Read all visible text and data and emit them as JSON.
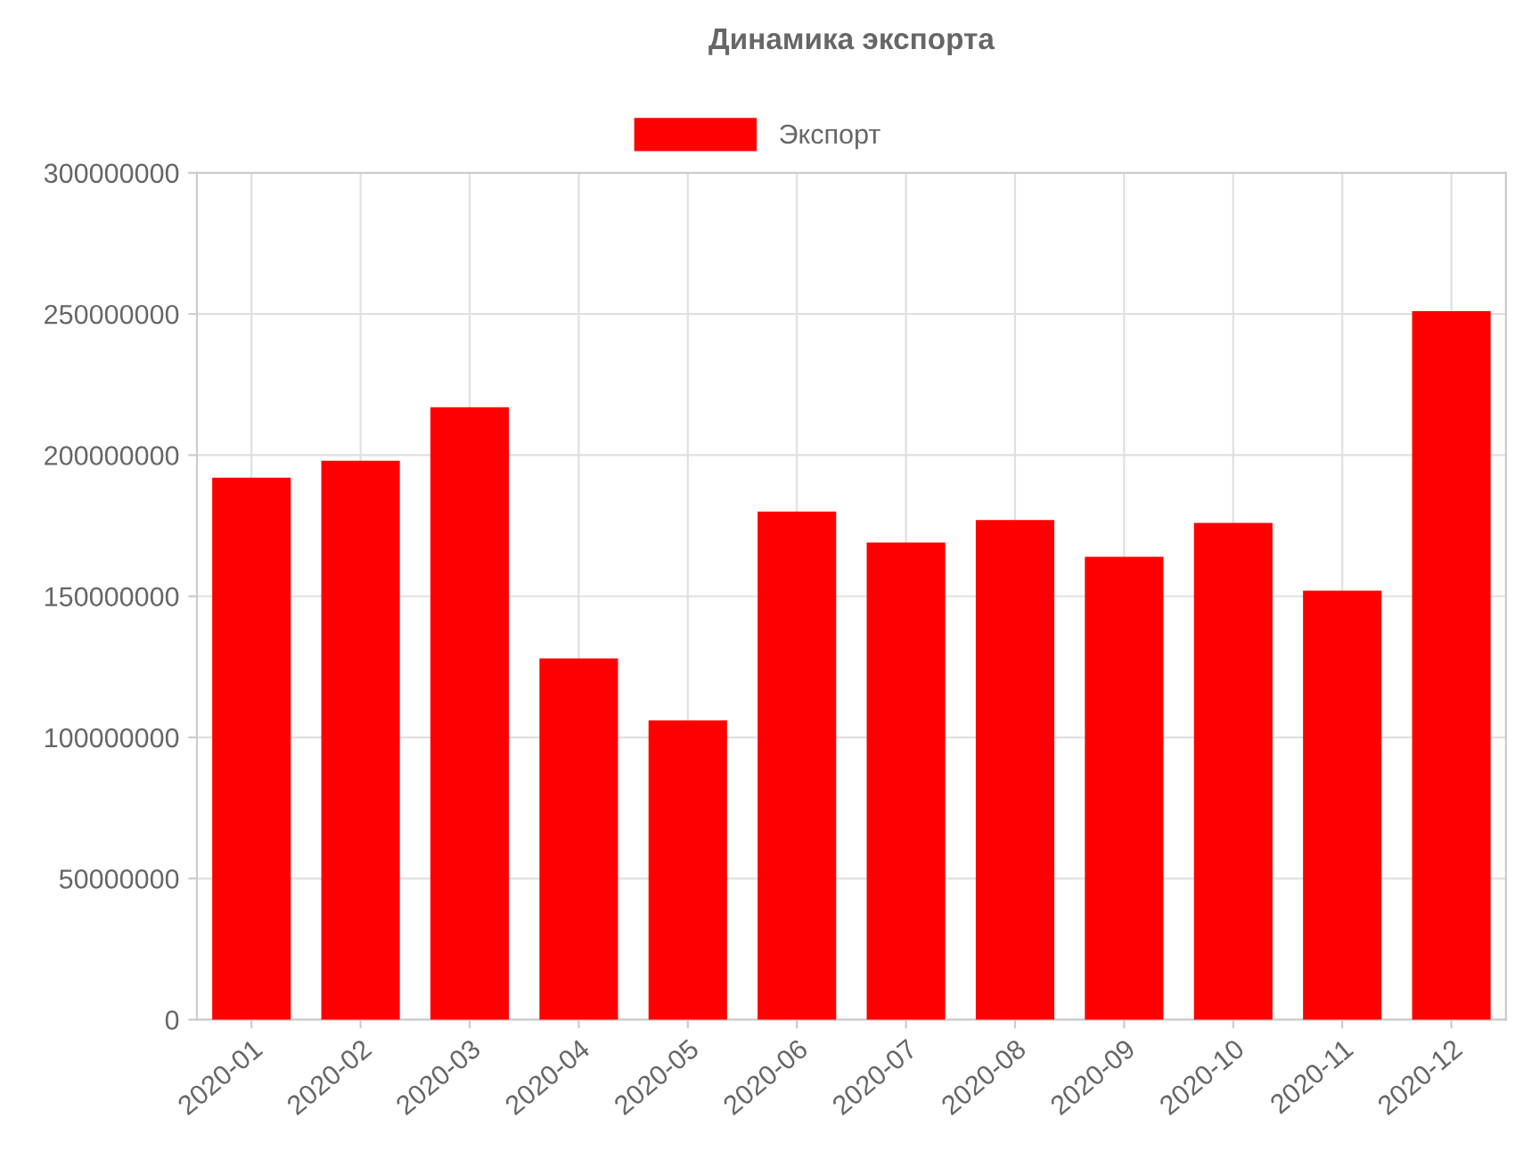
{
  "chart_data": {
    "type": "bar",
    "title": "Динамика экспорта",
    "categories": [
      "2020-01",
      "2020-02",
      "2020-03",
      "2020-04",
      "2020-05",
      "2020-06",
      "2020-07",
      "2020-08",
      "2020-09",
      "2020-10",
      "2020-11",
      "2020-12"
    ],
    "series": [
      {
        "name": "Экспорт",
        "color": "#ff0000",
        "values": [
          192000000,
          198000000,
          217000000,
          128000000,
          106000000,
          180000000,
          169000000,
          177000000,
          164000000,
          176000000,
          152000000,
          251000000
        ]
      }
    ],
    "ylim": [
      0,
      300000000
    ],
    "yticks": [
      0,
      50000000,
      100000000,
      150000000,
      200000000,
      250000000,
      300000000
    ],
    "grid": true,
    "legend": "top"
  }
}
